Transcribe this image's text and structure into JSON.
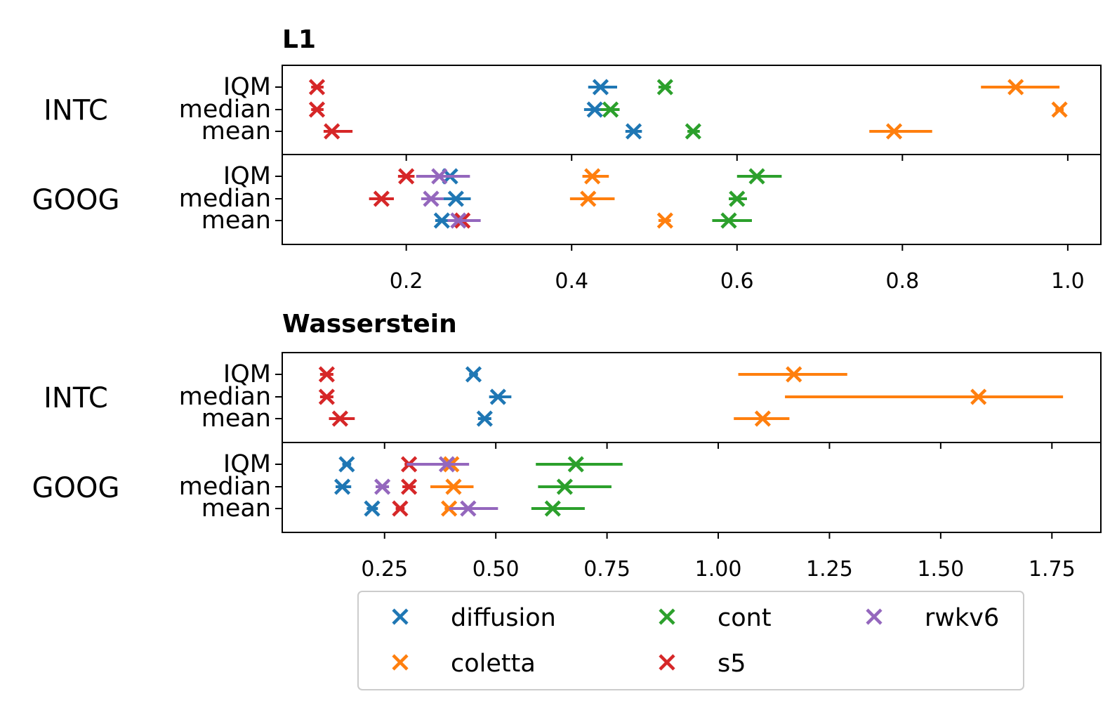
{
  "chart_data": {
    "type": "scatter",
    "legend": {
      "placement": "bottom-center",
      "entries": [
        {
          "name": "diffusion",
          "color": "#1f77b4"
        },
        {
          "name": "coletta",
          "color": "#ff7f0e"
        },
        {
          "name": "cont",
          "color": "#2ca02c"
        },
        {
          "name": "s5",
          "color": "#d62728"
        },
        {
          "name": "rwkv6",
          "color": "#9467bd"
        }
      ]
    },
    "panels": [
      {
        "title": "L1",
        "xlim": [
          0.05,
          1.04
        ],
        "xticks": [
          0.2,
          0.4,
          0.6,
          0.8,
          1.0
        ],
        "xtick_labels": [
          "0.2",
          "0.4",
          "0.6",
          "0.8",
          "1.0"
        ],
        "groups": [
          {
            "label": "INTC",
            "rows": [
              "IQM",
              "median",
              "mean"
            ],
            "series": [
              {
                "model": "diffusion",
                "points": [
                  {
                    "row": "IQM",
                    "x": 0.435,
                    "lo": 0.42,
                    "hi": 0.455
                  },
                  {
                    "row": "median",
                    "x": 0.428,
                    "lo": 0.415,
                    "hi": 0.44
                  },
                  {
                    "row": "mean",
                    "x": 0.475,
                    "lo": 0.465,
                    "hi": 0.485
                  }
                ]
              },
              {
                "model": "coletta",
                "points": [
                  {
                    "row": "IQM",
                    "x": 0.937,
                    "lo": 0.895,
                    "hi": 0.99
                  },
                  {
                    "row": "median",
                    "x": 0.99,
                    "lo": 0.985,
                    "hi": 0.995
                  },
                  {
                    "row": "mean",
                    "x": 0.79,
                    "lo": 0.76,
                    "hi": 0.836
                  }
                ]
              },
              {
                "model": "cont",
                "points": [
                  {
                    "row": "IQM",
                    "x": 0.513,
                    "lo": 0.505,
                    "hi": 0.52
                  },
                  {
                    "row": "median",
                    "x": 0.447,
                    "lo": 0.435,
                    "hi": 0.458
                  },
                  {
                    "row": "mean",
                    "x": 0.547,
                    "lo": 0.54,
                    "hi": 0.555
                  }
                ]
              },
              {
                "model": "s5",
                "points": [
                  {
                    "row": "IQM",
                    "x": 0.092,
                    "lo": 0.085,
                    "hi": 0.1
                  },
                  {
                    "row": "median",
                    "x": 0.092,
                    "lo": 0.085,
                    "hi": 0.1
                  },
                  {
                    "row": "mean",
                    "x": 0.11,
                    "lo": 0.1,
                    "hi": 0.135
                  }
                ]
              }
            ]
          },
          {
            "label": "GOOG",
            "rows": [
              "IQM",
              "median",
              "mean"
            ],
            "series": [
              {
                "model": "diffusion",
                "points": [
                  {
                    "row": "IQM",
                    "x": 0.253,
                    "lo": 0.24,
                    "hi": 0.265
                  },
                  {
                    "row": "median",
                    "x": 0.26,
                    "lo": 0.245,
                    "hi": 0.278
                  },
                  {
                    "row": "mean",
                    "x": 0.243,
                    "lo": 0.235,
                    "hi": 0.255
                  }
                ]
              },
              {
                "model": "coletta",
                "points": [
                  {
                    "row": "IQM",
                    "x": 0.425,
                    "lo": 0.413,
                    "hi": 0.445
                  },
                  {
                    "row": "median",
                    "x": 0.42,
                    "lo": 0.398,
                    "hi": 0.452
                  },
                  {
                    "row": "mean",
                    "x": 0.513,
                    "lo": 0.505,
                    "hi": 0.52
                  }
                ]
              },
              {
                "model": "cont",
                "points": [
                  {
                    "row": "IQM",
                    "x": 0.624,
                    "lo": 0.6,
                    "hi": 0.654
                  },
                  {
                    "row": "median",
                    "x": 0.6,
                    "lo": 0.59,
                    "hi": 0.612
                  },
                  {
                    "row": "mean",
                    "x": 0.59,
                    "lo": 0.57,
                    "hi": 0.618
                  }
                ]
              },
              {
                "model": "s5",
                "points": [
                  {
                    "row": "IQM",
                    "x": 0.2,
                    "lo": 0.19,
                    "hi": 0.21
                  },
                  {
                    "row": "median",
                    "x": 0.17,
                    "lo": 0.155,
                    "hi": 0.185
                  },
                  {
                    "row": "mean",
                    "x": 0.268,
                    "lo": 0.255,
                    "hi": 0.28
                  }
                ]
              },
              {
                "model": "rwkv6",
                "points": [
                  {
                    "row": "IQM",
                    "x": 0.24,
                    "lo": 0.212,
                    "hi": 0.277
                  },
                  {
                    "row": "median",
                    "x": 0.23,
                    "lo": 0.218,
                    "hi": 0.245
                  },
                  {
                    "row": "mean",
                    "x": 0.263,
                    "lo": 0.25,
                    "hi": 0.29
                  }
                ]
              }
            ]
          }
        ]
      },
      {
        "title": "Wasserstein",
        "xlim": [
          0.02,
          1.86
        ],
        "xticks": [
          0.25,
          0.5,
          0.75,
          1.0,
          1.25,
          1.5,
          1.75
        ],
        "xtick_labels": [
          "0.25",
          "0.50",
          "0.75",
          "1.00",
          "1.25",
          "1.50",
          "1.75"
        ],
        "groups": [
          {
            "label": "INTC",
            "rows": [
              "IQM",
              "median",
              "mean"
            ],
            "series": [
              {
                "model": "diffusion",
                "points": [
                  {
                    "row": "IQM",
                    "x": 0.45,
                    "lo": 0.44,
                    "hi": 0.46
                  },
                  {
                    "row": "median",
                    "x": 0.505,
                    "lo": 0.485,
                    "hi": 0.535
                  },
                  {
                    "row": "mean",
                    "x": 0.475,
                    "lo": 0.46,
                    "hi": 0.49
                  }
                ]
              },
              {
                "model": "coletta",
                "points": [
                  {
                    "row": "IQM",
                    "x": 1.17,
                    "lo": 1.045,
                    "hi": 1.29
                  },
                  {
                    "row": "median",
                    "x": 1.585,
                    "lo": 1.15,
                    "hi": 1.775
                  },
                  {
                    "row": "mean",
                    "x": 1.1,
                    "lo": 1.035,
                    "hi": 1.16
                  }
                ]
              },
              {
                "model": "s5",
                "points": [
                  {
                    "row": "IQM",
                    "x": 0.12,
                    "lo": 0.105,
                    "hi": 0.135
                  },
                  {
                    "row": "median",
                    "x": 0.12,
                    "lo": 0.105,
                    "hi": 0.135
                  },
                  {
                    "row": "mean",
                    "x": 0.15,
                    "lo": 0.125,
                    "hi": 0.183
                  }
                ]
              }
            ]
          },
          {
            "label": "GOOG",
            "rows": [
              "IQM",
              "median",
              "mean"
            ],
            "series": [
              {
                "model": "diffusion",
                "points": [
                  {
                    "row": "IQM",
                    "x": 0.165,
                    "lo": 0.155,
                    "hi": 0.175
                  },
                  {
                    "row": "median",
                    "x": 0.155,
                    "lo": 0.14,
                    "hi": 0.175
                  },
                  {
                    "row": "mean",
                    "x": 0.222,
                    "lo": 0.21,
                    "hi": 0.235
                  }
                ]
              },
              {
                "model": "coletta",
                "points": [
                  {
                    "row": "IQM",
                    "x": 0.4,
                    "lo": 0.385,
                    "hi": 0.415
                  },
                  {
                    "row": "median",
                    "x": 0.405,
                    "lo": 0.353,
                    "hi": 0.45
                  },
                  {
                    "row": "mean",
                    "x": 0.395,
                    "lo": 0.385,
                    "hi": 0.41
                  }
                ]
              },
              {
                "model": "cont",
                "points": [
                  {
                    "row": "IQM",
                    "x": 0.68,
                    "lo": 0.59,
                    "hi": 0.785
                  },
                  {
                    "row": "median",
                    "x": 0.655,
                    "lo": 0.595,
                    "hi": 0.76
                  },
                  {
                    "row": "mean",
                    "x": 0.628,
                    "lo": 0.58,
                    "hi": 0.7
                  }
                ]
              },
              {
                "model": "s5",
                "points": [
                  {
                    "row": "IQM",
                    "x": 0.305,
                    "lo": 0.295,
                    "hi": 0.315
                  },
                  {
                    "row": "median",
                    "x": 0.305,
                    "lo": 0.29,
                    "hi": 0.32
                  },
                  {
                    "row": "mean",
                    "x": 0.285,
                    "lo": 0.275,
                    "hi": 0.295
                  }
                ]
              },
              {
                "model": "rwkv6",
                "points": [
                  {
                    "row": "IQM",
                    "x": 0.39,
                    "lo": 0.3,
                    "hi": 0.44
                  },
                  {
                    "row": "median",
                    "x": 0.245,
                    "lo": 0.23,
                    "hi": 0.26
                  },
                  {
                    "row": "mean",
                    "x": 0.438,
                    "lo": 0.395,
                    "hi": 0.505
                  }
                ]
              }
            ]
          }
        ]
      }
    ]
  }
}
